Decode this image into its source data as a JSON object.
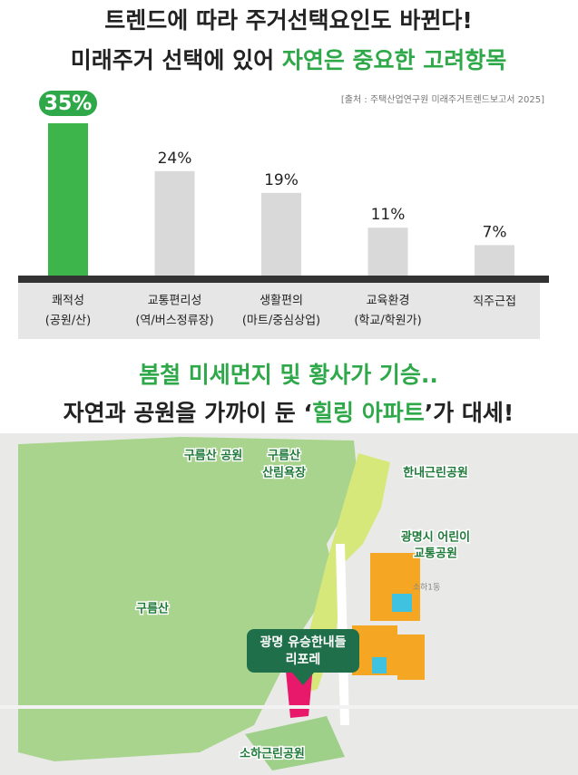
{
  "header": {
    "line1": "트렌드에 따라 주거선택요인도 바뀐다!",
    "line2_a": "미래주거 선택에 있어 ",
    "line2_b": "자연은 중요한 고려항목"
  },
  "chart_data": {
    "type": "bar",
    "source": "[출처 : 주택산업연구원 미래주거트렌드보고서 2025]",
    "categories": [
      "쾌적성",
      "교통편리성",
      "생활편의",
      "교육환경",
      "직주근접"
    ],
    "category_subtitles": [
      "(공원/산)",
      "(역/버스정류장)",
      "(마트/중심상업)",
      "(학교/학원가)",
      null
    ],
    "values": [
      35,
      24,
      19,
      11,
      7
    ],
    "value_labels": [
      "35%",
      "24%",
      "19%",
      "11%",
      "7%"
    ],
    "colors": [
      "#3db54a",
      "#d9d9d9",
      "#d9d9d9",
      "#d9d9d9",
      "#d9d9d9"
    ]
  },
  "section2": {
    "line1": "봄철 미세먼지 및 황사가 기승..",
    "line2_a": "자연과 공원을 가까이 둔 ‘",
    "line2_b": "힐링 아파트",
    "line2_c": "’가 대세!"
  },
  "map": {
    "labels": [
      "구름산 공원",
      "구름산",
      "산림욕장",
      "한내근린공원",
      "광명시 어린이",
      "교통공원",
      "구름산",
      "소하근린공원",
      "소하1동"
    ],
    "marker": [
      "광명 유승한내들",
      "리포레"
    ]
  }
}
